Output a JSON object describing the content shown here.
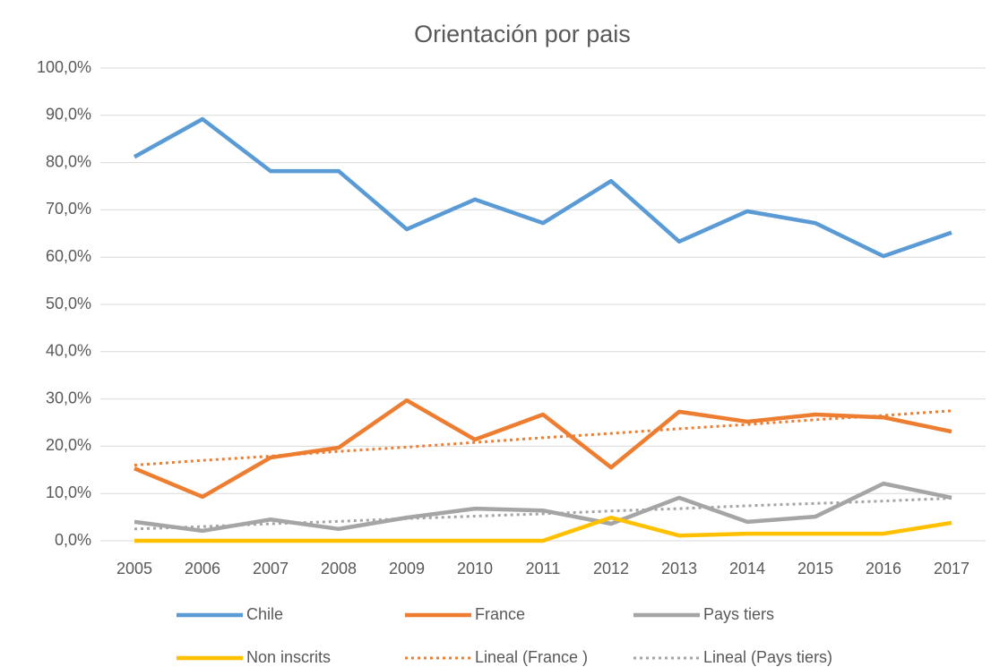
{
  "chart_data": {
    "type": "line",
    "title": "Orientación por pais",
    "categories": [
      "2005",
      "2006",
      "2007",
      "2008",
      "2009",
      "2010",
      "2011",
      "2012",
      "2013",
      "2014",
      "2015",
      "2016",
      "2017"
    ],
    "series": [
      {
        "name": "Chile",
        "color": "#5b9bd5",
        "values": [
          81.2,
          89.2,
          78.2,
          78.2,
          65.9,
          72.2,
          67.2,
          76.1,
          63.3,
          69.7,
          67.2,
          60.2,
          65.2
        ]
      },
      {
        "name": "France",
        "color": "#ed7d31",
        "values": [
          15.3,
          9.3,
          17.6,
          19.7,
          29.7,
          21.4,
          26.7,
          15.5,
          27.3,
          25.2,
          26.7,
          26.1,
          23.1
        ]
      },
      {
        "name": "Pays tiers",
        "color": "#a5a5a5",
        "values": [
          4.0,
          2.1,
          4.5,
          2.5,
          4.9,
          6.8,
          6.4,
          3.6,
          9.1,
          4.0,
          5.1,
          12.1,
          9.1
        ]
      },
      {
        "name": "Non inscrits",
        "color": "#ffc000",
        "values": [
          0,
          0,
          0,
          0,
          0,
          0,
          0,
          4.9,
          1.1,
          1.5,
          1.5,
          1.5,
          3.8
        ]
      },
      {
        "name": "Lineal (France )",
        "color": "#ed7d31",
        "dashed": true,
        "values": [
          16.0,
          17.0,
          17.9,
          18.9,
          19.8,
          20.8,
          21.8,
          22.7,
          23.7,
          24.6,
          25.6,
          26.5,
          27.5
        ]
      },
      {
        "name": "Lineal (Pays tiers)",
        "color": "#a5a5a5",
        "dashed": true,
        "values": [
          2.5,
          3.0,
          3.6,
          4.1,
          4.7,
          5.2,
          5.7,
          6.3,
          6.8,
          7.4,
          7.9,
          8.4,
          9.0
        ]
      }
    ],
    "ylim": [
      0,
      100
    ],
    "yticks": [
      {
        "value": 0,
        "label": "0,0%"
      },
      {
        "value": 10,
        "label": "10,0%"
      },
      {
        "value": 20,
        "label": "20,0%"
      },
      {
        "value": 30,
        "label": "30,0%"
      },
      {
        "value": 40,
        "label": "40,0%"
      },
      {
        "value": 50,
        "label": "50,0%"
      },
      {
        "value": 60,
        "label": "60,0%"
      },
      {
        "value": 70,
        "label": "70,0%"
      },
      {
        "value": 80,
        "label": "80,0%"
      },
      {
        "value": 90,
        "label": "90,0%"
      },
      {
        "value": 100,
        "label": "100,0%"
      }
    ],
    "grid": true,
    "legend": "bottom"
  }
}
